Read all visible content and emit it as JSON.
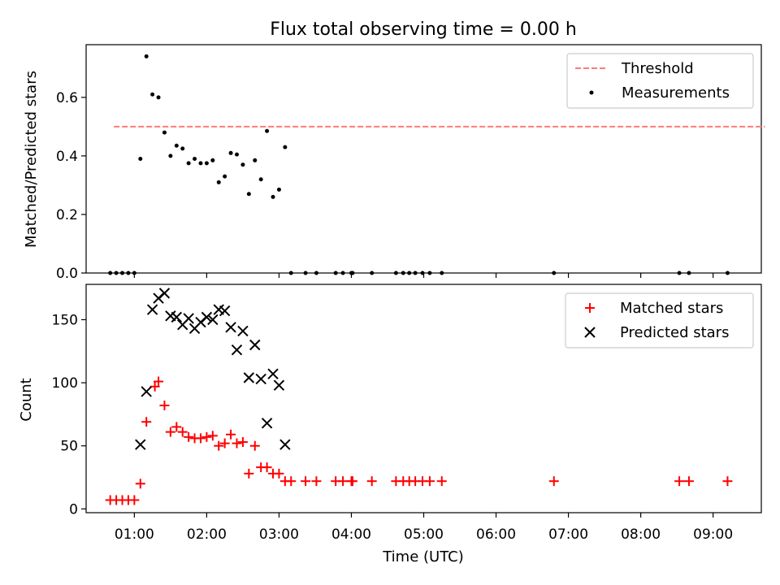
{
  "title": "Flux total observing time = 0.00 h",
  "x_tick_labels": [
    "01:00",
    "02:00",
    "03:00",
    "04:00",
    "05:00",
    "06:00",
    "07:00",
    "08:00",
    "09:00"
  ],
  "chart_data": [
    {
      "type": "scatter",
      "ylabel": "Matched/Predicted stars",
      "xlim": [
        "00:20",
        "09:40"
      ],
      "ylim": [
        0,
        0.78
      ],
      "yticks": [
        0.0,
        0.2,
        0.4,
        0.6
      ],
      "ytick_labels": [
        "0.0",
        "0.2",
        "0.4",
        "0.6"
      ],
      "legend": {
        "position": "upper right",
        "entries": [
          "Threshold",
          "Measurements"
        ]
      },
      "threshold": {
        "name": "Threshold",
        "value": 0.5,
        "x_start": "00:43",
        "x_end": "09:43",
        "color": "#ff7a7a",
        "style": "dashed"
      },
      "series": [
        {
          "name": "Measurements",
          "color": "#000000",
          "marker": "dot",
          "points": [
            [
              "00:40",
              0
            ],
            [
              "00:45",
              0
            ],
            [
              "00:50",
              0
            ],
            [
              "00:55",
              0
            ],
            [
              "01:00",
              0
            ],
            [
              "01:05",
              0.39
            ],
            [
              "01:10",
              0.74
            ],
            [
              "01:15",
              0.61
            ],
            [
              "01:20",
              0.6
            ],
            [
              "01:25",
              0.48
            ],
            [
              "01:30",
              0.4
            ],
            [
              "01:35",
              0.435
            ],
            [
              "01:40",
              0.425
            ],
            [
              "01:45",
              0.375
            ],
            [
              "01:50",
              0.39
            ],
            [
              "01:55",
              0.375
            ],
            [
              "02:00",
              0.375
            ],
            [
              "02:05",
              0.385
            ],
            [
              "02:10",
              0.31
            ],
            [
              "02:15",
              0.33
            ],
            [
              "02:20",
              0.41
            ],
            [
              "02:25",
              0.405
            ],
            [
              "02:30",
              0.37
            ],
            [
              "02:35",
              0.27
            ],
            [
              "02:40",
              0.385
            ],
            [
              "02:45",
              0.32
            ],
            [
              "02:50",
              0.485
            ],
            [
              "02:55",
              0.26
            ],
            [
              "03:00",
              0.285
            ],
            [
              "03:05",
              0.43
            ],
            [
              "03:10",
              0
            ],
            [
              "03:22",
              0
            ],
            [
              "03:31",
              0
            ],
            [
              "03:47",
              0
            ],
            [
              "03:53",
              0
            ],
            [
              "04:00",
              0
            ],
            [
              "04:01",
              0
            ],
            [
              "04:17",
              0
            ],
            [
              "04:37",
              0
            ],
            [
              "04:43",
              0
            ],
            [
              "04:48",
              0
            ],
            [
              "04:53",
              0
            ],
            [
              "04:59",
              0
            ],
            [
              "05:05",
              0
            ],
            [
              "05:15",
              0
            ],
            [
              "06:48",
              0
            ],
            [
              "08:32",
              0
            ],
            [
              "08:40",
              0
            ],
            [
              "09:12",
              0
            ]
          ]
        }
      ]
    },
    {
      "type": "scatter",
      "xlabel": "Time (UTC)",
      "ylabel": "Count",
      "xlim": [
        "00:20",
        "09:40"
      ],
      "ylim": [
        -3,
        178
      ],
      "yticks": [
        0,
        50,
        100,
        150
      ],
      "ytick_labels": [
        "0",
        "50",
        "100",
        "150"
      ],
      "legend": {
        "position": "upper right",
        "entries": [
          "Matched stars",
          "Predicted stars"
        ]
      },
      "series": [
        {
          "name": "Matched stars",
          "color": "#ff0000",
          "marker": "plus",
          "points": [
            [
              "00:40",
              7
            ],
            [
              "00:45",
              7
            ],
            [
              "00:50",
              7
            ],
            [
              "00:55",
              7
            ],
            [
              "01:00",
              7
            ],
            [
              "01:05",
              20
            ],
            [
              "01:10",
              69
            ],
            [
              "01:17",
              97
            ],
            [
              "01:20",
              101
            ],
            [
              "01:25",
              82
            ],
            [
              "01:30",
              61
            ],
            [
              "01:35",
              65
            ],
            [
              "01:40",
              61
            ],
            [
              "01:45",
              57
            ],
            [
              "01:50",
              56
            ],
            [
              "01:55",
              56
            ],
            [
              "02:00",
              57
            ],
            [
              "02:05",
              58
            ],
            [
              "02:10",
              50
            ],
            [
              "02:15",
              52
            ],
            [
              "02:20",
              59
            ],
            [
              "02:25",
              52
            ],
            [
              "02:30",
              53
            ],
            [
              "02:35",
              28
            ],
            [
              "02:40",
              50
            ],
            [
              "02:45",
              33
            ],
            [
              "02:50",
              33
            ],
            [
              "02:55",
              28
            ],
            [
              "03:00",
              28
            ],
            [
              "03:05",
              22
            ],
            [
              "03:10",
              22
            ],
            [
              "03:22",
              22
            ],
            [
              "03:31",
              22
            ],
            [
              "03:47",
              22
            ],
            [
              "03:53",
              22
            ],
            [
              "04:00",
              22
            ],
            [
              "04:01",
              22
            ],
            [
              "04:17",
              22
            ],
            [
              "04:37",
              22
            ],
            [
              "04:43",
              22
            ],
            [
              "04:48",
              22
            ],
            [
              "04:53",
              22
            ],
            [
              "04:59",
              22
            ],
            [
              "05:05",
              22
            ],
            [
              "05:15",
              22
            ],
            [
              "06:48",
              22
            ],
            [
              "08:32",
              22
            ],
            [
              "08:40",
              22
            ],
            [
              "09:12",
              22
            ]
          ]
        },
        {
          "name": "Predicted stars",
          "color": "#000000",
          "marker": "x",
          "points": [
            [
              "01:05",
              51
            ],
            [
              "01:10",
              93
            ],
            [
              "01:15",
              158
            ],
            [
              "01:20",
              167
            ],
            [
              "01:25",
              171
            ],
            [
              "01:30",
              153
            ],
            [
              "01:35",
              152
            ],
            [
              "01:40",
              146
            ],
            [
              "01:45",
              151
            ],
            [
              "01:50",
              143
            ],
            [
              "01:55",
              148
            ],
            [
              "02:00",
              152
            ],
            [
              "02:05",
              150
            ],
            [
              "02:10",
              158
            ],
            [
              "02:15",
              157
            ],
            [
              "02:20",
              144
            ],
            [
              "02:25",
              126
            ],
            [
              "02:30",
              141
            ],
            [
              "02:35",
              104
            ],
            [
              "02:40",
              130
            ],
            [
              "02:45",
              103
            ],
            [
              "02:50",
              68
            ],
            [
              "02:55",
              107
            ],
            [
              "03:00",
              98
            ],
            [
              "03:05",
              51
            ]
          ]
        }
      ]
    }
  ]
}
